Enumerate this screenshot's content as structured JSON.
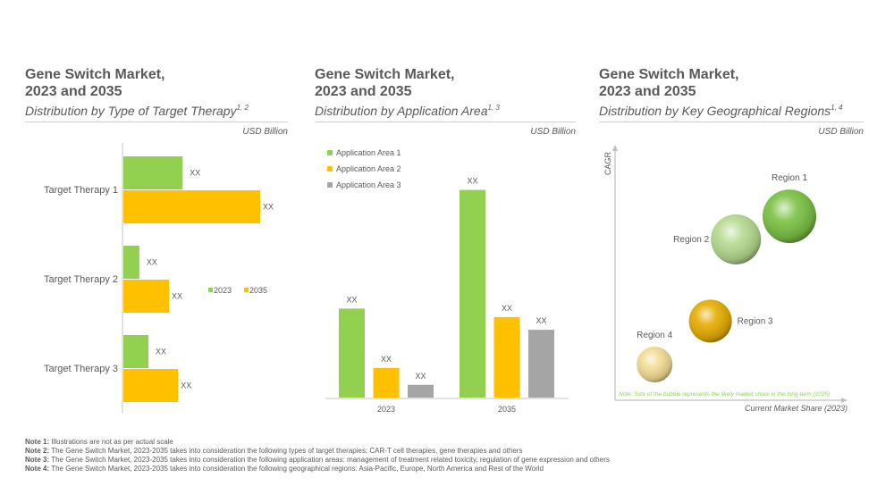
{
  "panels": [
    {
      "title_line1": "Gene Switch Market,",
      "title_line2": "2023 and 2035",
      "subtitle": "Distribution by Type of Target Therapy",
      "subtitle_sup": "1, 2",
      "unit": "USD Billion"
    },
    {
      "title_line1": "Gene Switch Market,",
      "title_line2": "2023 and 2035",
      "subtitle": "Distribution by Application Area",
      "subtitle_sup": "1, 3",
      "unit": "USD Billion"
    },
    {
      "title_line1": "Gene Switch Market,",
      "title_line2": "2023 and 2035",
      "subtitle": "Distribution by Key Geographical Regions",
      "subtitle_sup": "1, 4",
      "unit": "USD Billion"
    }
  ],
  "colors": {
    "green": "#92d050",
    "orange": "#ffc000",
    "gray": "#a5a5a5",
    "note_green": "#92d050",
    "text": "#595959",
    "axis": "#d9d9d9"
  },
  "chart_data": [
    {
      "type": "bar",
      "orientation": "horizontal",
      "title": "Gene Switch Market, 2023 and 2035 - Distribution by Type of Target Therapy",
      "categories": [
        "Target Therapy 1",
        "Target Therapy 2",
        "Target Therapy 3"
      ],
      "series": [
        {
          "name": "2023",
          "color": "#92d050",
          "values": [
            26,
            7,
            11
          ],
          "labels": [
            "XX",
            "XX",
            "XX"
          ]
        },
        {
          "name": "2035",
          "color": "#ffc000",
          "values": [
            60,
            20,
            24
          ],
          "labels": [
            "XX",
            "XX",
            "XX"
          ]
        }
      ],
      "xlim": [
        0,
        70
      ],
      "legend": "right-middle",
      "grid": false,
      "xlabel": "",
      "ylabel": ""
    },
    {
      "type": "bar",
      "orientation": "vertical",
      "title": "Gene Switch Market, 2023 and 2035 - Distribution by Application Area",
      "categories": [
        "2023",
        "2035"
      ],
      "series": [
        {
          "name": "Application Area 1",
          "color": "#92d050",
          "values": [
            42,
            98
          ],
          "labels": [
            "XX",
            "XX"
          ]
        },
        {
          "name": "Application Area 2",
          "color": "#ffc000",
          "values": [
            14,
            38
          ],
          "labels": [
            "XX",
            "XX"
          ]
        },
        {
          "name": "Application Area 3",
          "color": "#a5a5a5",
          "values": [
            6,
            32
          ],
          "labels": [
            "XX",
            "XX"
          ]
        }
      ],
      "ylim": [
        0,
        105
      ],
      "legend": "top-left",
      "grid": false,
      "xlabel": "",
      "ylabel": ""
    },
    {
      "type": "scatter",
      "subtype": "bubble",
      "title": "Gene Switch Market, 2023 and 2035 - Distribution by Key Geographical Regions",
      "xlabel": "Current Market Share (2023)",
      "ylabel": "CAGR",
      "note": "Note: Size of the bubble represents the likely market share in the long-term (2035)",
      "points": [
        {
          "name": "Region 1",
          "x": 75,
          "y": 72,
          "size": 30,
          "color": "#7ac143",
          "label_pos": "top"
        },
        {
          "name": "Region 2",
          "x": 52,
          "y": 63,
          "size": 28,
          "color": "#b5da8f",
          "label_pos": "left"
        },
        {
          "name": "Region 3",
          "x": 41,
          "y": 31,
          "size": 24,
          "color": "#e6ac00",
          "label_pos": "right"
        },
        {
          "name": "Region 4",
          "x": 17,
          "y": 14,
          "size": 20,
          "color": "#f2dc94",
          "label_pos": "top"
        }
      ],
      "xlim": [
        0,
        100
      ],
      "ylim": [
        0,
        100
      ],
      "grid": false,
      "legend": "none"
    }
  ],
  "notes": [
    {
      "label": "Note 1:",
      "text": " Illustrations are not as per actual scale"
    },
    {
      "label": "Note 2:",
      "text": " The Gene Switch Market, 2023-2035 takes into  consideration the following types of target therapies: CAR-T cell therapies, gene therapies and others"
    },
    {
      "label": "Note 3:",
      "text": " The Gene Switch Market, 2023-2035 takes into  consideration the following application areas: management  of treatment related toxicity, regulation of gene expression and others"
    },
    {
      "label": "Note 4:",
      "text": " The Gene Switch Market, 2023-2035 takes into  consideration the following geographical regions: Asia-Pacific, Europe, North America and Rest of the World"
    }
  ]
}
